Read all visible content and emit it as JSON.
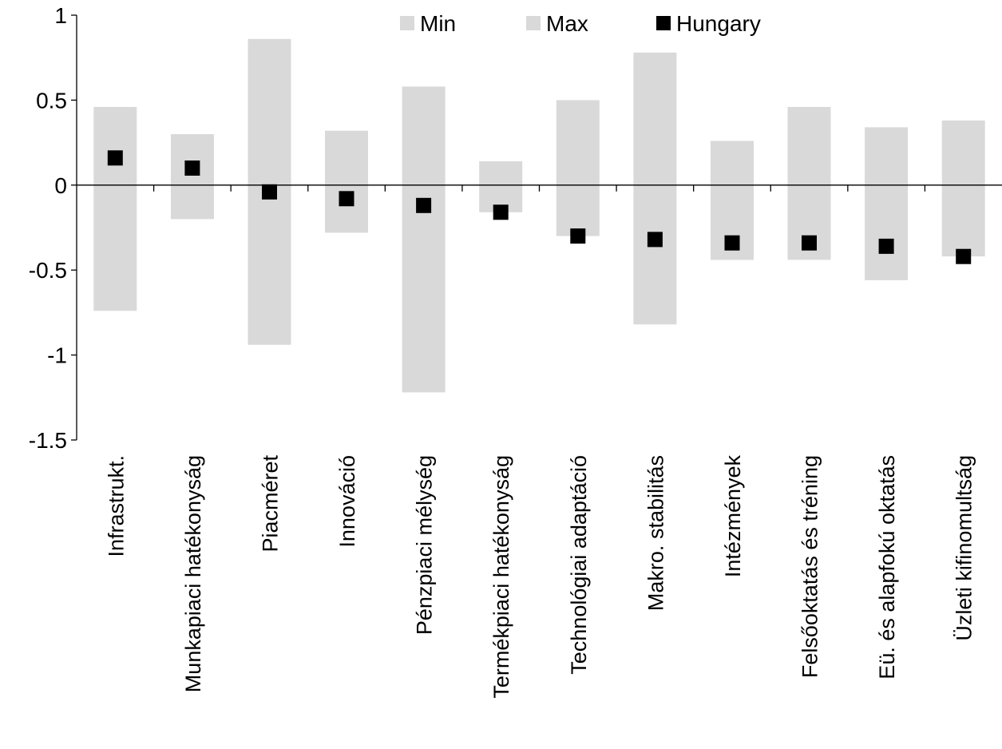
{
  "chart_data": {
    "type": "bar",
    "categories": [
      "Infrastrukt.",
      "Munkapiaci hatékonyság",
      "Piacméret",
      "Innováció",
      "Pénzpiaci mélység",
      "Termékpiaci hatékonyság",
      "Technológiai adaptáció",
      "Makro. stabilitás",
      "Intézmények",
      "Felsőoktatás és tréning",
      "Eü. és alapfokú oktatás",
      "Üzleti kifinomultság"
    ],
    "series": [
      {
        "name": "Min",
        "values": [
          -0.74,
          -0.2,
          -0.94,
          -0.28,
          -1.22,
          -0.16,
          -0.3,
          -0.82,
          -0.44,
          -0.44,
          -0.56,
          -0.42
        ]
      },
      {
        "name": "Max",
        "values": [
          0.46,
          0.3,
          0.86,
          0.32,
          0.58,
          0.14,
          0.5,
          0.78,
          0.26,
          0.46,
          0.34,
          0.38
        ]
      },
      {
        "name": "Hungary",
        "values": [
          0.16,
          0.1,
          -0.04,
          -0.08,
          -0.12,
          -0.16,
          -0.3,
          -0.32,
          -0.34,
          -0.34,
          -0.36,
          -0.42
        ]
      }
    ],
    "yticks": [
      "1",
      "0.5",
      "0",
      "-0.5",
      "-1",
      "-1.5"
    ],
    "ylim": [
      -1.5,
      1
    ],
    "legend_position": "top-right",
    "colors": {
      "range": "#d9d9d9",
      "marker": "#000000",
      "axis": "#000000"
    }
  }
}
